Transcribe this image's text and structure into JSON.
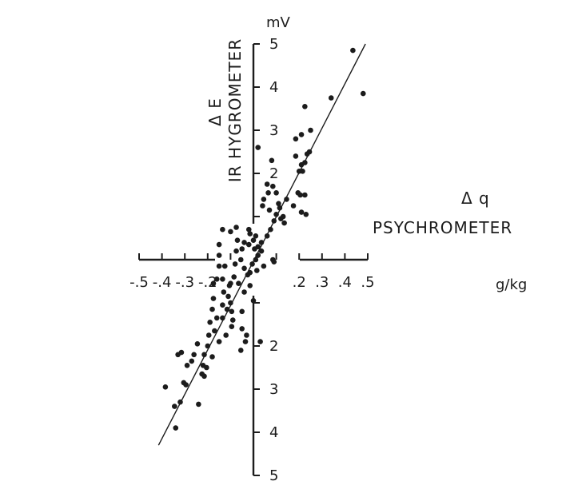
{
  "chart_data": {
    "type": "scatter",
    "x_title": "Δ q",
    "x_subtitle": "PSYCHROMETER",
    "x_unit": "g/kg",
    "y_title": "Δ E",
    "y_subtitle": "IR HYGROMETER",
    "y_unit": "mV",
    "x_ticks": [
      "-.5",
      "-.4",
      "-.3",
      "-.2",
      ".2",
      ".3",
      ".4",
      ".5"
    ],
    "x_tick_values": [
      -0.5,
      -0.4,
      -0.3,
      -0.2,
      0.2,
      0.3,
      0.4,
      0.5
    ],
    "x_minor_tick_values": [
      -0.1,
      0.1
    ],
    "y_ticks_upper": [
      "2",
      "3",
      "4",
      "5"
    ],
    "y_tick_values_upper": [
      2,
      3,
      4,
      5
    ],
    "y_minor_tick_values_upper": [
      1
    ],
    "y_ticks_lower": [
      "2",
      "3",
      "4",
      "5"
    ],
    "y_tick_values_lower": [
      -2,
      -3,
      -4,
      -5
    ],
    "y_minor_tick_values_lower": [
      -1
    ],
    "xlim": [
      -0.5,
      0.5
    ],
    "ylim": [
      -5,
      5
    ],
    "grid": false,
    "fit_line": {
      "x": [
        -0.415,
        0.49
      ],
      "y": [
        -4.3,
        5.0
      ]
    },
    "points": [
      [
        0.435,
        4.85
      ],
      [
        0.48,
        3.85
      ],
      [
        0.34,
        3.75
      ],
      [
        0.225,
        3.55
      ],
      [
        0.25,
        3.0
      ],
      [
        0.21,
        2.9
      ],
      [
        0.185,
        2.8
      ],
      [
        0.245,
        2.5
      ],
      [
        0.235,
        2.45
      ],
      [
        0.185,
        2.4
      ],
      [
        0.21,
        2.2
      ],
      [
        0.225,
        2.25
      ],
      [
        0.2,
        2.05
      ],
      [
        0.215,
        2.05
      ],
      [
        0.195,
        1.55
      ],
      [
        0.205,
        1.5
      ],
      [
        0.225,
        1.5
      ],
      [
        0.145,
        1.4
      ],
      [
        0.175,
        1.25
      ],
      [
        0.21,
        1.1
      ],
      [
        0.23,
        1.05
      ],
      [
        0.135,
        0.85
      ],
      [
        0.13,
        1.0
      ],
      [
        0.02,
        2.6
      ],
      [
        0.08,
        2.3
      ],
      [
        0.06,
        1.75
      ],
      [
        0.085,
        1.7
      ],
      [
        0.065,
        1.55
      ],
      [
        0.1,
        1.55
      ],
      [
        0.11,
        1.3
      ],
      [
        0.115,
        1.2
      ],
      [
        0.045,
        1.4
      ],
      [
        0.04,
        1.25
      ],
      [
        0.07,
        1.15
      ],
      [
        0.1,
        1.05
      ],
      [
        0.12,
        0.95
      ],
      [
        0.09,
        0.9
      ],
      [
        0.075,
        0.7
      ],
      [
        0.06,
        0.55
      ],
      [
        0.02,
        0.3
      ],
      [
        0.035,
        0.4
      ],
      [
        0.01,
        0.55
      ],
      [
        0.0,
        0.45
      ],
      [
        -0.015,
        0.6
      ],
      [
        -0.02,
        0.7
      ],
      [
        0.005,
        0.25
      ],
      [
        -0.02,
        0.35
      ],
      [
        0.02,
        0.1
      ],
      [
        0.035,
        0.2
      ],
      [
        0.01,
        0.0
      ],
      [
        -0.005,
        -0.1
      ],
      [
        -0.015,
        -0.3
      ],
      [
        0.015,
        -0.25
      ],
      [
        0.045,
        -0.15
      ],
      [
        0.085,
        0.0
      ],
      [
        -0.04,
        0.4
      ],
      [
        -0.05,
        0.25
      ],
      [
        -0.055,
        0.0
      ],
      [
        -0.04,
        -0.2
      ],
      [
        -0.025,
        -0.35
      ],
      [
        -0.07,
        0.45
      ],
      [
        -0.075,
        0.2
      ],
      [
        -0.08,
        -0.1
      ],
      [
        -0.085,
        -0.4
      ],
      [
        -0.065,
        -0.55
      ],
      [
        -0.04,
        -0.75
      ],
      [
        -0.015,
        -0.6
      ],
      [
        0.0,
        -0.95
      ],
      [
        -0.1,
        0.65
      ],
      [
        -0.1,
        -0.55
      ],
      [
        -0.11,
        -0.85
      ],
      [
        -0.105,
        -0.6
      ],
      [
        -0.1,
        -1.0
      ],
      [
        -0.095,
        -1.2
      ],
      [
        -0.13,
        -0.75
      ],
      [
        -0.125,
        -0.15
      ],
      [
        -0.15,
        0.1
      ],
      [
        -0.15,
        -0.15
      ],
      [
        -0.16,
        -0.45
      ],
      [
        -0.175,
        -0.55
      ],
      [
        -0.175,
        -0.9
      ],
      [
        -0.135,
        -1.05
      ],
      [
        -0.115,
        -1.15
      ],
      [
        -0.09,
        -1.4
      ],
      [
        -0.095,
        -1.55
      ],
      [
        -0.12,
        -1.75
      ],
      [
        -0.135,
        -1.35
      ],
      [
        -0.16,
        -1.35
      ],
      [
        -0.18,
        -1.15
      ],
      [
        -0.19,
        -1.45
      ],
      [
        -0.195,
        -1.75
      ],
      [
        -0.2,
        -2.0
      ],
      [
        -0.215,
        -2.2
      ],
      [
        -0.18,
        -2.25
      ],
      [
        -0.15,
        -1.9
      ],
      [
        -0.05,
        -1.6
      ],
      [
        -0.03,
        -1.75
      ],
      [
        -0.035,
        -1.9
      ],
      [
        -0.055,
        -2.1
      ],
      [
        -0.135,
        -0.45
      ],
      [
        -0.05,
        -1.2
      ],
      [
        -0.17,
        -1.65
      ],
      [
        -0.22,
        -2.45
      ],
      [
        -0.245,
        -1.95
      ],
      [
        -0.26,
        -2.2
      ],
      [
        -0.27,
        -2.35
      ],
      [
        -0.29,
        -2.45
      ],
      [
        -0.315,
        -2.15
      ],
      [
        -0.33,
        -2.2
      ],
      [
        -0.305,
        -2.85
      ],
      [
        -0.295,
        -2.9
      ],
      [
        -0.32,
        -3.3
      ],
      [
        -0.345,
        -3.4
      ],
      [
        -0.34,
        -3.9
      ],
      [
        -0.385,
        -2.95
      ],
      [
        -0.24,
        -3.35
      ],
      [
        -0.215,
        -2.7
      ],
      [
        -0.205,
        -2.5
      ],
      [
        -0.225,
        -2.65
      ],
      [
        -0.135,
        0.7
      ],
      [
        -0.15,
        0.35
      ],
      [
        -0.075,
        0.75
      ],
      [
        0.09,
        -0.05
      ],
      [
        0.03,
        -1.9
      ]
    ]
  }
}
